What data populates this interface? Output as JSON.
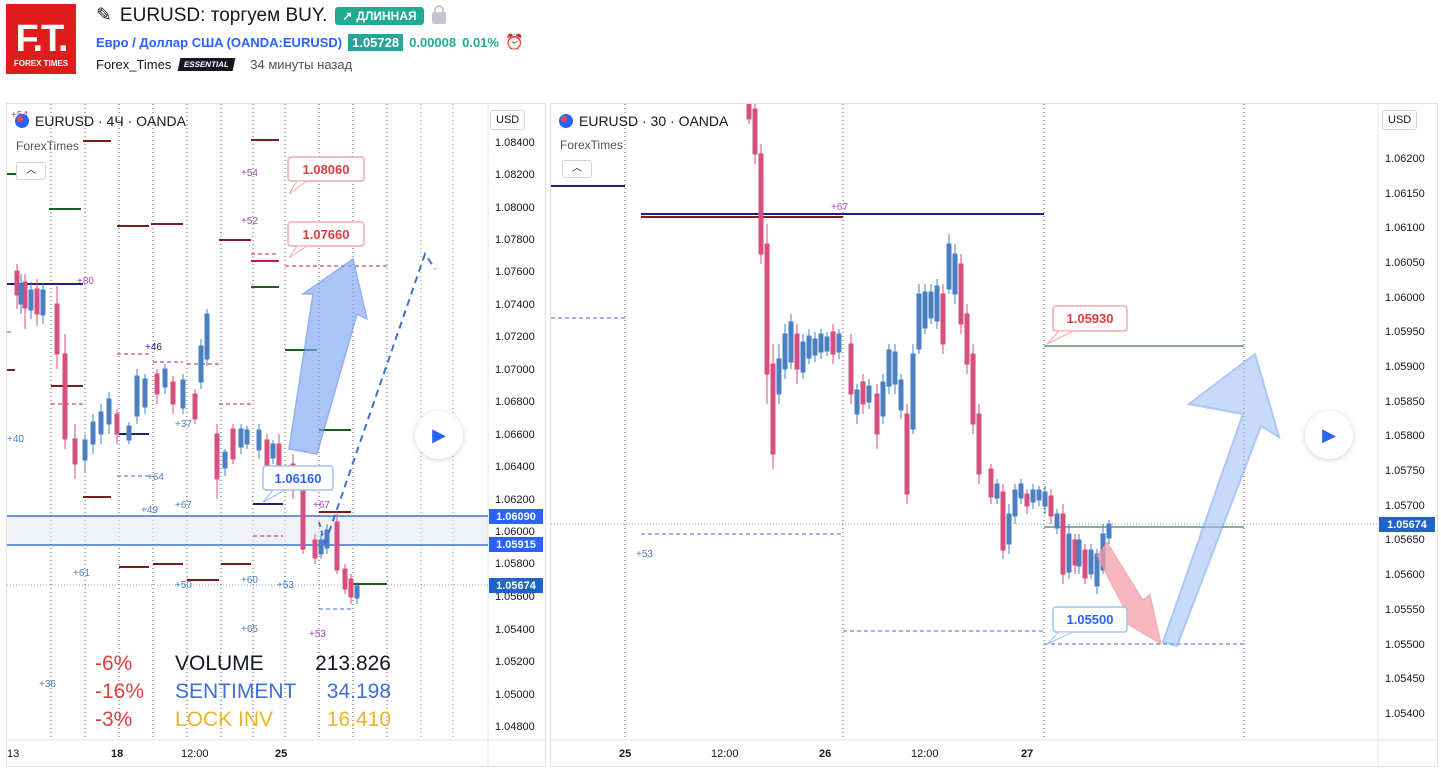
{
  "header": {
    "logo_text": "F.T.",
    "logo_sub": "FOREX TIMES",
    "title": "EURUSD: торгуем BUY.",
    "direction_pill": "ДЛИННАЯ",
    "symbol_name": "Евро / Доллар США",
    "symbol_code": "(OANDA:EURUSD)",
    "price": "1.05728",
    "change_abs": "0.00008",
    "change_pct": "0.01%",
    "author": "Forex_Times",
    "author_badge": "ESSENTIAL",
    "time_ago": "34 минуты назад"
  },
  "left_chart": {
    "title": "EURUSD · 4Ч · OANDA",
    "subtitle": "ForexTimes",
    "currency": "USD",
    "y_ticks": [
      "1.08400",
      "1.08200",
      "1.08000",
      "1.07800",
      "1.07600",
      "1.07400",
      "1.07200",
      "1.07000",
      "1.06800",
      "1.06600",
      "1.06400",
      "1.06200",
      "1.06000",
      "1.05800",
      "1.05600",
      "1.05400",
      "1.05200",
      "1.05000",
      "1.04800"
    ],
    "x_ticks": [
      "13",
      "18",
      "12:00",
      "25"
    ],
    "price_tags": [
      "1.06090",
      "1.05915",
      "1.05674"
    ],
    "callouts": [
      "1.08060",
      "1.07660",
      "1.06160"
    ],
    "small_labels": [
      "+54",
      "+50",
      "+46",
      "+37",
      "+40",
      "+64",
      "+49",
      "+67",
      "+61",
      "+50",
      "+60",
      "+53",
      "+65",
      "+53",
      "+36",
      "+52",
      "+54",
      "+67",
      "+80"
    ],
    "stats": [
      {
        "pct": "-6%",
        "label": "VOLUME",
        "value": "213.826",
        "color": "#131722"
      },
      {
        "pct": "-16%",
        "label": "SENTIMENT",
        "value": "34.198",
        "color": "#3d6fd6"
      },
      {
        "pct": "-3%",
        "label": "LOCK INV",
        "value": "16.410",
        "color": "#e8b52b"
      }
    ]
  },
  "right_chart": {
    "title": "EURUSD · 30 · OANDA",
    "subtitle": "ForexTimes",
    "currency": "USD",
    "y_ticks": [
      "1.06200",
      "1.06150",
      "1.06100",
      "1.06050",
      "1.06000",
      "1.05950",
      "1.05900",
      "1.05850",
      "1.05800",
      "1.05750",
      "1.05700",
      "1.05650",
      "1.05600",
      "1.05550",
      "1.05500",
      "1.05450",
      "1.05400"
    ],
    "x_ticks": [
      "25",
      "12:00",
      "26",
      "12:00",
      "27"
    ],
    "price_tag": "1.05674",
    "callouts": [
      "1.05930",
      "1.05500"
    ],
    "small_labels": [
      "+67",
      "+53"
    ]
  }
}
